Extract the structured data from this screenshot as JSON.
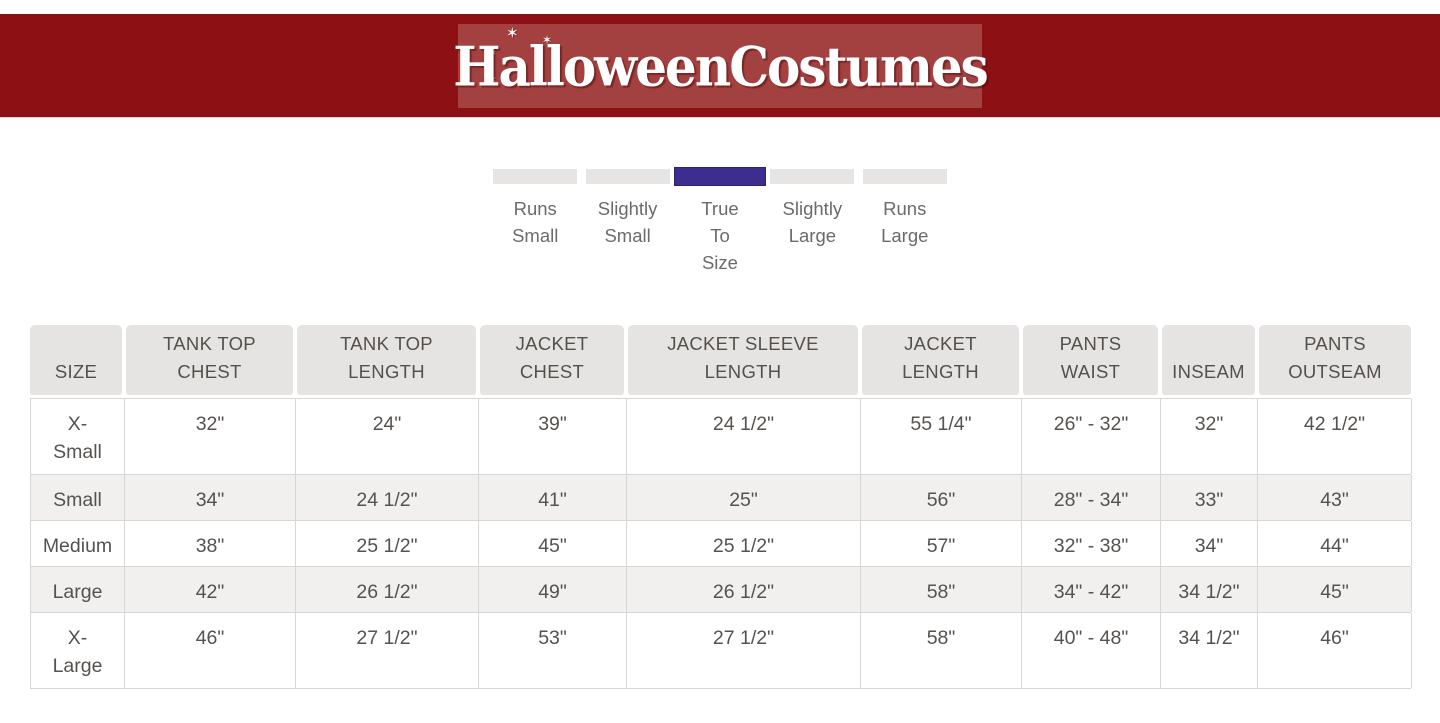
{
  "colors": {
    "banner_bg": "#8c1014",
    "logo_panel_bg": "#a34040",
    "fit_active": "#3c2d8e",
    "fit_inactive": "#e7e5e4",
    "fit_label": "#6b6b6b",
    "header_cell_bg": "#e6e4e2",
    "row_alt_bg": "#f1f0ee",
    "table_text": "#56524f",
    "table_border": "#d8d6d4"
  },
  "brand": {
    "logo_text": "HalloweenCostumes",
    "star_glyph": "✶"
  },
  "fit_scale": {
    "active_index": 2,
    "options": [
      {
        "label": "Runs\nSmall"
      },
      {
        "label": "Slightly\nSmall"
      },
      {
        "label": "True\nTo\nSize"
      },
      {
        "label": "Slightly\nLarge"
      },
      {
        "label": "Runs\nLarge"
      }
    ]
  },
  "size_chart": {
    "columns": [
      "SIZE",
      "TANK TOP\nCHEST",
      "TANK TOP\nLENGTH",
      "JACKET\nCHEST",
      "JACKET SLEEVE\nLENGTH",
      "JACKET\nLENGTH",
      "PANTS\nWAIST",
      "INSEAM",
      "PANTS\nOUTSEAM"
    ],
    "rows": [
      {
        "size": "X-\nSmall",
        "values": [
          "32\"",
          "24\"",
          "39\"",
          "24 1/2\"",
          "55 1/4\"",
          "26\" - 32\"",
          "32\"",
          "42 1/2\""
        ]
      },
      {
        "size": "Small",
        "values": [
          "34\"",
          "24 1/2\"",
          "41\"",
          "25\"",
          "56\"",
          "28\" - 34\"",
          "33\"",
          "43\""
        ]
      },
      {
        "size": "Medium",
        "values": [
          "38\"",
          "25 1/2\"",
          "45\"",
          "25 1/2\"",
          "57\"",
          "32\" - 38\"",
          "34\"",
          "44\""
        ]
      },
      {
        "size": "Large",
        "values": [
          "42\"",
          "26 1/2\"",
          "49\"",
          "26 1/2\"",
          "58\"",
          "34\" - 42\"",
          "34 1/2\"",
          "45\""
        ]
      },
      {
        "size": "X-\nLarge",
        "values": [
          "46\"",
          "27 1/2\"",
          "53\"",
          "27 1/2\"",
          "58\"",
          "40\" - 48\"",
          "34 1/2\"",
          "46\""
        ]
      }
    ]
  }
}
